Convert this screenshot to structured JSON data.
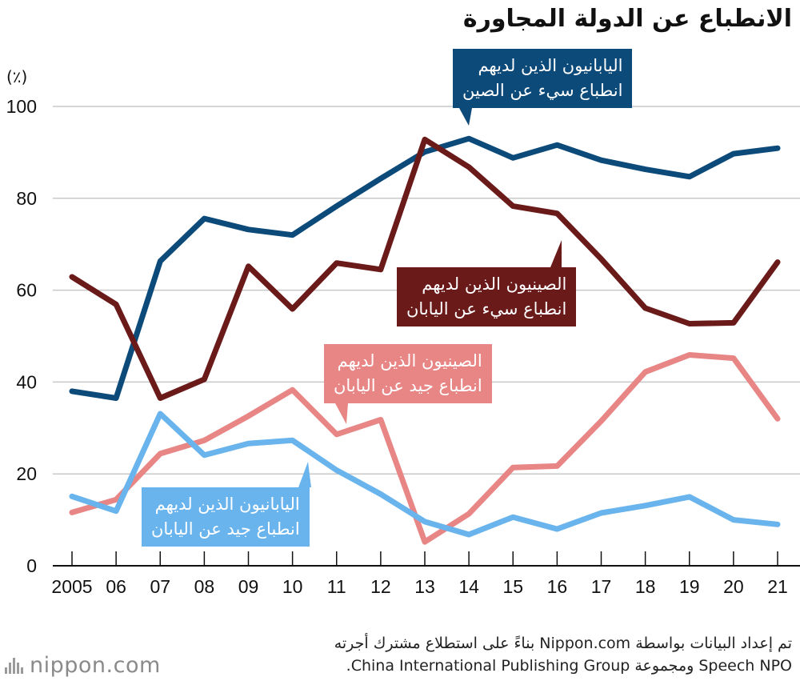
{
  "title": "الانطباع عن الدولة المجاورة",
  "unit_label": "(٪)",
  "source_line1": "تم إعداد البيانات بواسطة Nippon.com بناءً على استطلاع مشترك أجرته",
  "source_line2": "Speech NPO ومجموعة China International Publishing Group.",
  "logo_text": "nippon.com",
  "chart_data": {
    "type": "line",
    "x": [
      "2005",
      "06",
      "07",
      "08",
      "09",
      "10",
      "11",
      "12",
      "13",
      "14",
      "15",
      "16",
      "17",
      "18",
      "19",
      "20",
      "21"
    ],
    "ylim": [
      0,
      100
    ],
    "yticks": [
      0,
      20,
      40,
      60,
      80,
      100
    ],
    "grid": true,
    "series": [
      {
        "name": "اليابانيون الذين لديهم انطباع سيء عن الصين",
        "color": "#0c4a7a",
        "values": [
          38,
          36.5,
          66.3,
          75.6,
          73.2,
          72,
          78.3,
          84.3,
          90.1,
          93,
          88.8,
          91.6,
          88.3,
          86.3,
          84.7,
          89.7,
          90.9
        ]
      },
      {
        "name": "الصينيون الذين لديهم انطباع سيء عن اليابان",
        "color": "#6b1a1a",
        "values": [
          62.9,
          56.9,
          36.5,
          40.6,
          65.2,
          55.9,
          65.9,
          64.5,
          92.8,
          86.8,
          78.3,
          76.7,
          66.8,
          56.1,
          52.7,
          52.9,
          66.1
        ]
      },
      {
        "name": "الصينيون الذين لديهم انطباع جيد عن اليابان",
        "color": "#e88585",
        "values": [
          11.6,
          14.4,
          24.4,
          27.3,
          32.6,
          38.3,
          28.6,
          31.8,
          5.2,
          11.3,
          21.4,
          21.7,
          31.5,
          42.2,
          45.9,
          45.2,
          32
        ]
      },
      {
        "name": "اليابانيون الذين لديهم انطباع جيد عن اليابان",
        "color": "#6ab4ee",
        "values": [
          15.1,
          11.9,
          33.1,
          24.1,
          26.6,
          27.3,
          20.8,
          15.6,
          9.6,
          6.8,
          10.6,
          8,
          11.5,
          13.1,
          15,
          10,
          9
        ]
      }
    ],
    "callouts": [
      {
        "line1": "اليابانيون الذين لديهم",
        "line2": "انطباع سيء عن الصين"
      },
      {
        "line1": "الصينيون الذين لديهم",
        "line2": "انطباع سيء عن اليابان"
      },
      {
        "line1": "الصينيون الذين لديهم",
        "line2": "انطباع جيد عن اليابان"
      },
      {
        "line1": "اليابانيون الذين لديهم",
        "line2": "انطباع جيد عن اليابان"
      }
    ]
  }
}
